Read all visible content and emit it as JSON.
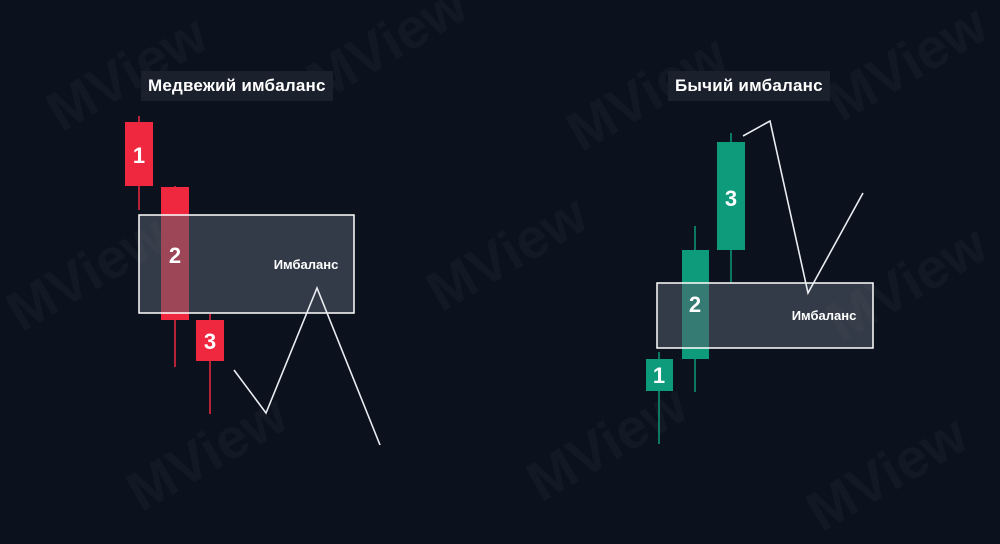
{
  "watermark": "MView",
  "colors": {
    "background": "#0b111d",
    "bear": "#f0283f",
    "bull": "#0d9b7c",
    "zone_fill": "rgba(88,94,108,0.55)",
    "zone_stroke": "#ffffff",
    "path": "#e9ecf0",
    "title_bg": "#1b212c"
  },
  "bearish": {
    "title": "Медвежий имбаланс",
    "zone_label": "Имбаланс",
    "candles": [
      {
        "label": "1"
      },
      {
        "label": "2"
      },
      {
        "label": "3"
      }
    ]
  },
  "bullish": {
    "title": "Бычий имбаланс",
    "zone_label": "Имбаланс",
    "candles": [
      {
        "label": "1"
      },
      {
        "label": "2"
      },
      {
        "label": "3"
      }
    ]
  }
}
